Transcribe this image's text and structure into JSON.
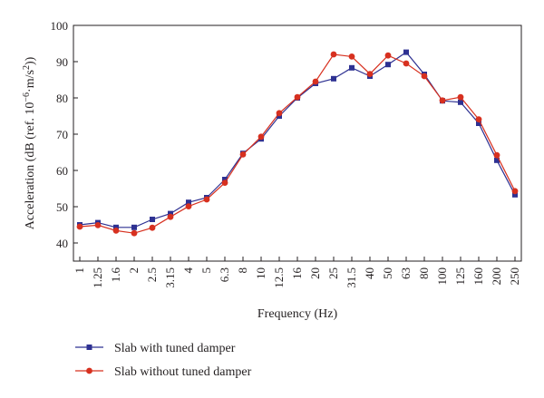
{
  "chart_data": {
    "type": "line",
    "title": "",
    "xlabel": "Frequency (Hz)",
    "ylabel_prefix": "Acceleration (dB (ref. 10",
    "ylabel_exp1": "−6",
    "ylabel_mid": "·m/s",
    "ylabel_exp2": "2",
    "ylabel_suffix": "))",
    "ylim": [
      35,
      100
    ],
    "yticks": [
      "40",
      "50",
      "60",
      "70",
      "80",
      "90",
      "100"
    ],
    "categories": [
      "1",
      "1.25",
      "1.6",
      "2",
      "2.5",
      "3.15",
      "4",
      "5",
      "6.3",
      "8",
      "10",
      "12.5",
      "16",
      "20",
      "25",
      "31.5",
      "40",
      "50",
      "63",
      "80",
      "100",
      "125",
      "160",
      "200",
      "250"
    ],
    "legend_position": "bottom-left",
    "series": [
      {
        "name": "Slab with tuned damper",
        "color": "#2e3192",
        "marker": "square",
        "values": [
          45.0,
          45.6,
          44.3,
          44.3,
          46.5,
          48.1,
          51.2,
          52.5,
          57.5,
          64.7,
          68.7,
          75.0,
          80.0,
          84.0,
          85.3,
          88.3,
          86.0,
          89.2,
          92.6,
          86.5,
          79.2,
          78.8,
          73.0,
          62.8,
          53.3
        ]
      },
      {
        "name": "Slab without tuned damper",
        "color": "#d7301f",
        "marker": "circle",
        "values": [
          44.5,
          44.9,
          43.4,
          42.7,
          44.2,
          47.2,
          50.1,
          52.0,
          56.6,
          64.4,
          69.3,
          75.8,
          80.2,
          84.5,
          92.0,
          91.4,
          86.6,
          91.7,
          89.5,
          86.0,
          79.3,
          80.2,
          74.1,
          64.2,
          54.3
        ]
      }
    ]
  }
}
